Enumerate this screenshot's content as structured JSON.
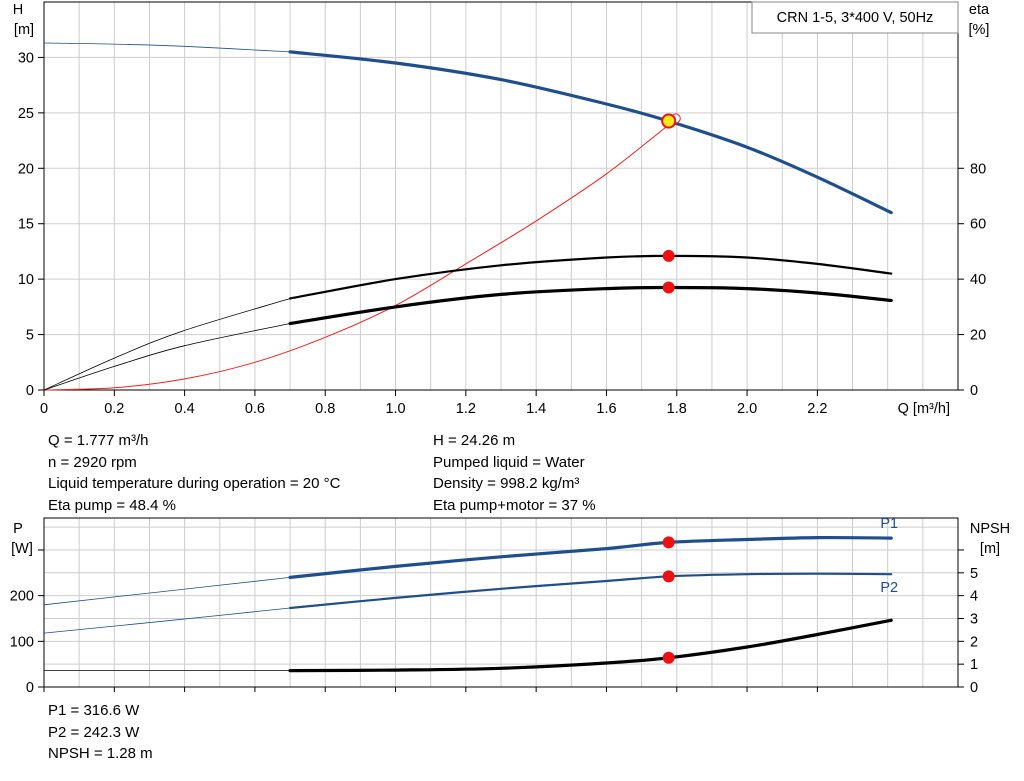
{
  "chart_data": [
    {
      "type": "line",
      "title": "CRN 1-5, 3*400 V, 50Hz",
      "xlabel": "Q [m³/h]",
      "ylabel_left": [
        "H",
        "[m]"
      ],
      "ylabel_right": [
        "eta",
        "[%]"
      ],
      "xlim": [
        0,
        2.6
      ],
      "ylim_left": [
        0,
        35
      ],
      "ylim_right": [
        0,
        140
      ],
      "x_ticks": [
        "0",
        "0.2",
        "0.4",
        "0.6",
        "0.8",
        "1.0",
        "1.2",
        "1.4",
        "1.6",
        "1.8",
        "2.0",
        "2.2"
      ],
      "y_ticks_left": [
        "0",
        "5",
        "10",
        "15",
        "20",
        "25",
        "30"
      ],
      "y_ticks_right": [
        "0",
        "20",
        "40",
        "60",
        "80"
      ],
      "grid": true,
      "series": [
        {
          "key": "H",
          "axis": "left",
          "color": "#1f4e8c",
          "x": [
            0,
            0.2,
            0.4,
            0.7,
            1.0,
            1.3,
            1.6,
            1.777,
            2.0,
            2.2,
            2.41
          ],
          "y": [
            31.3,
            31.2,
            31.0,
            30.5,
            29.5,
            28.0,
            25.8,
            24.26,
            21.9,
            19.2,
            16.0
          ],
          "bold_from": 0.7,
          "operating_x": 1.777,
          "operating_y": 24.26
        },
        {
          "key": "eta_pump",
          "axis": "right",
          "color": "#000000",
          "x": [
            0,
            0.2,
            0.4,
            0.7,
            1.0,
            1.3,
            1.6,
            1.777,
            2.0,
            2.2,
            2.41
          ],
          "y": [
            0,
            11.5,
            21.5,
            33.0,
            40.0,
            45.0,
            47.8,
            48.4,
            47.8,
            45.5,
            42.0
          ],
          "bold_from": 0.7,
          "operating_x": 1.777,
          "operating_y": 48.4
        },
        {
          "key": "eta_total",
          "axis": "right",
          "color": "#000000",
          "x": [
            0,
            0.2,
            0.4,
            0.7,
            1.0,
            1.3,
            1.6,
            1.777,
            2.0,
            2.2,
            2.41
          ],
          "y": [
            0,
            8.5,
            16.0,
            24.0,
            30.0,
            34.5,
            36.6,
            37.0,
            36.6,
            35.0,
            32.3
          ],
          "bold_from": 0.7,
          "operating_x": 1.777,
          "operating_y": 37.0
        },
        {
          "key": "eta_red",
          "axis": "right",
          "color": "#ee2222",
          "x": [
            0,
            0.2,
            0.4,
            0.6,
            0.8,
            1.0,
            1.2,
            1.4,
            1.6,
            1.8
          ],
          "y": [
            0,
            0.8,
            4.0,
            10.0,
            19.0,
            30.5,
            45.5,
            61.0,
            78.0,
            98.0
          ]
        }
      ]
    },
    {
      "type": "line",
      "xlim": [
        0,
        2.6
      ],
      "ylabel_left": [
        "P",
        "[W]"
      ],
      "ylabel_right": [
        "NPSH",
        "[m]"
      ],
      "ylim_left": [
        0,
        370
      ],
      "ylim_right": [
        0,
        7.4
      ],
      "y_ticks_left": [
        "0",
        "100",
        "200"
      ],
      "y_ticks_right": [
        "0",
        "1",
        "2",
        "3",
        "4",
        "5"
      ],
      "grid": true,
      "series": [
        {
          "key": "P1",
          "name": "P1",
          "axis": "left",
          "color": "#1f4e8c",
          "x": [
            0,
            0.35,
            0.7,
            1.0,
            1.3,
            1.6,
            1.777,
            2.0,
            2.2,
            2.41
          ],
          "y": [
            180,
            210,
            240,
            264,
            285,
            303,
            316.6,
            323,
            327,
            326
          ],
          "bold_from": 0.7,
          "operating_x": 1.777,
          "operating_y": 316.6
        },
        {
          "key": "P2",
          "name": "P2",
          "axis": "left",
          "color": "#1f4e8c",
          "x": [
            0,
            0.35,
            0.7,
            1.0,
            1.3,
            1.6,
            1.777,
            2.0,
            2.2,
            2.41
          ],
          "y": [
            118,
            145,
            173,
            195,
            215,
            232,
            242.3,
            247,
            248,
            247
          ],
          "bold_from": 0.7,
          "operating_x": 1.777,
          "operating_y": 242.3
        },
        {
          "key": "NPSH",
          "axis": "right",
          "color": "#000000",
          "x": [
            0,
            0.7,
            1.0,
            1.3,
            1.6,
            1.777,
            2.0,
            2.2,
            2.41
          ],
          "y": [
            0.72,
            0.72,
            0.74,
            0.82,
            1.05,
            1.28,
            1.75,
            2.3,
            2.92
          ],
          "bold_from": 0.7,
          "operating_x": 1.777,
          "operating_y": 1.28
        }
      ]
    }
  ],
  "info": {
    "q": "Q = 1.777 m³/h",
    "n": "n = 2920 rpm",
    "temp": "Liquid temperature during operation = 20 °C",
    "eta_pump": "Eta pump = 48.4 %",
    "h": "H = 24.26 m",
    "liquid": "Pumped liquid = Water",
    "density": "Density = 998.2 kg/m³",
    "eta_total": "Eta pump+motor = 37 %",
    "p1": "P1 = 316.6 W",
    "p2": "P2 = 242.3 W",
    "npsh": "NPSH = 1.28 m"
  }
}
